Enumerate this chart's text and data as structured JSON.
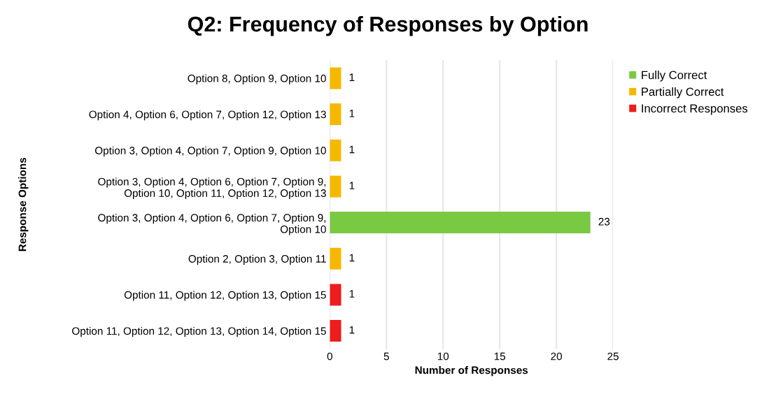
{
  "chart_data": {
    "type": "bar",
    "orientation": "horizontal",
    "title": "Q2: Frequency of Responses by Option",
    "xlabel": "Number of Responses",
    "ylabel": "Response Options",
    "categories": [
      "Option 8, Option 9, Option 10",
      "Option 4, Option 6, Option 7, Option 12, Option 13",
      "Option 3, Option 4, Option 7, Option 9, Option 10",
      "Option 3, Option 4, Option 6, Option 7, Option 9,\nOption 10, Option 11, Option 12, Option 13",
      "Option 3, Option 4, Option 6, Option 7, Option 9,\nOption 10",
      "Option 2, Option 3, Option 11",
      "Option 11, Option 12, Option 13, Option 15",
      "Option 11, Option 12, Option 13, Option 14, Option 15"
    ],
    "series": [
      {
        "name": "Fully Correct",
        "color": "#7ac943",
        "values": [
          null,
          null,
          null,
          null,
          23,
          null,
          null,
          null
        ]
      },
      {
        "name": "Partially Correct",
        "color": "#f5b800",
        "values": [
          1,
          1,
          1,
          1,
          null,
          1,
          null,
          null
        ]
      },
      {
        "name": "Incorrect Responses",
        "color": "#ee1c1c",
        "values": [
          null,
          null,
          null,
          null,
          null,
          null,
          1,
          1
        ]
      }
    ],
    "xlim": [
      0,
      25
    ],
    "xticks": [
      0,
      5,
      10,
      15,
      20,
      25
    ],
    "grid": "x",
    "legend": "top right",
    "data_labels": true
  }
}
